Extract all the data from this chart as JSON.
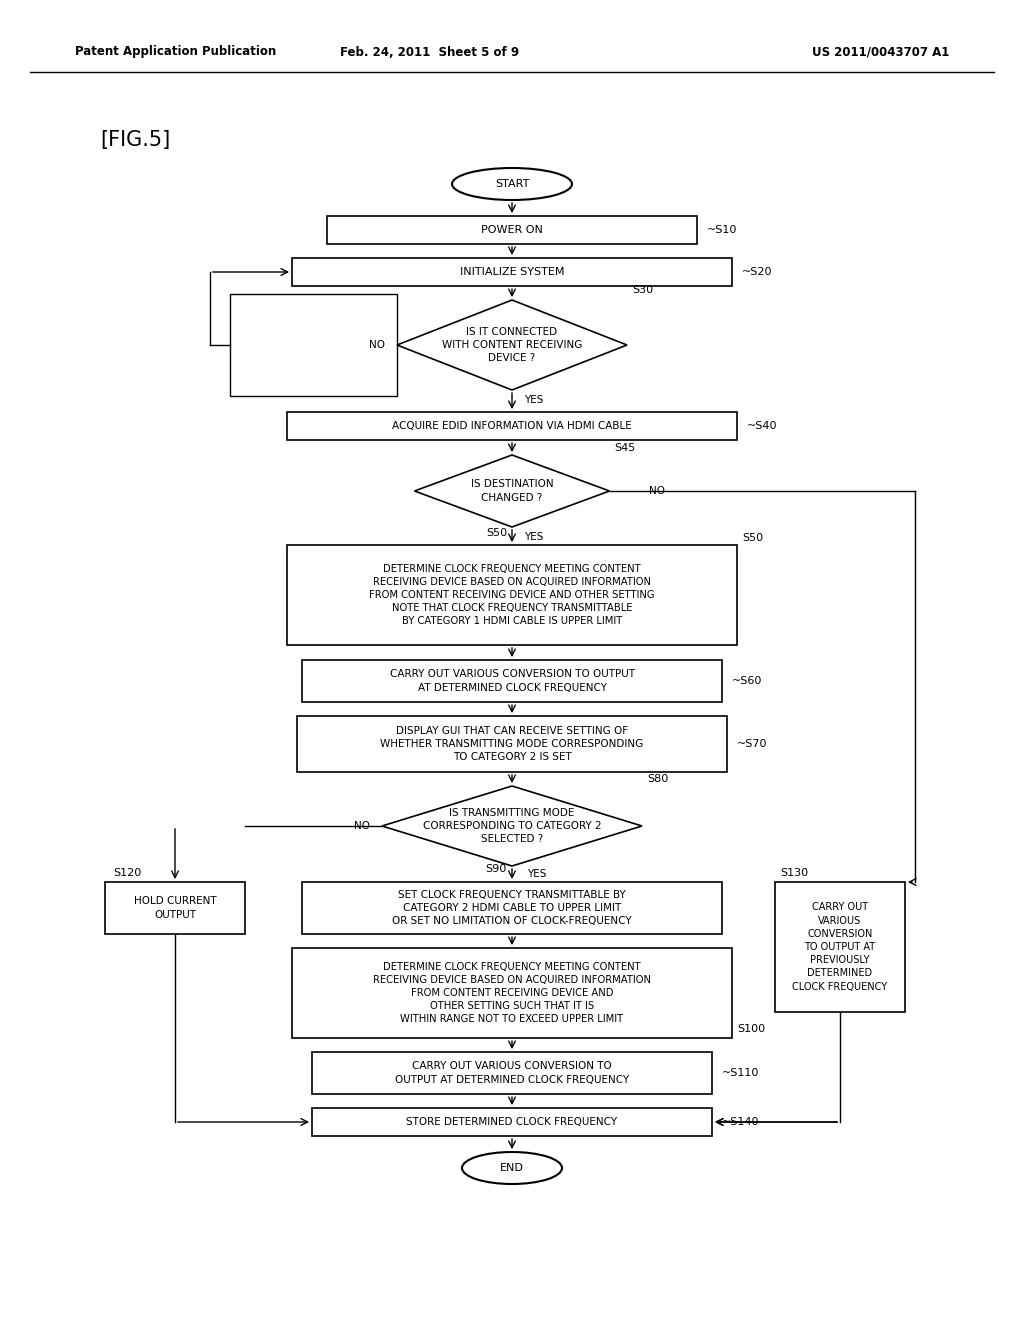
{
  "header_left": "Patent Application Publication",
  "header_center": "Feb. 24, 2011  Sheet 5 of 9",
  "header_right": "US 2011/0043707 A1",
  "fig_label": "[FIG.5]",
  "bg_color": "#ffffff",
  "nodes": {
    "start": {
      "text": "START"
    },
    "s10": {
      "text": "POWER ON",
      "label": "~S10"
    },
    "s20": {
      "text": "INITIALIZE SYSTEM",
      "label": "~S20"
    },
    "s30": {
      "text": "IS IT CONNECTED\nWITH CONTENT RECEIVING\nDEVICE ?",
      "label": "S30"
    },
    "s40": {
      "text": "ACQUIRE EDID INFORMATION VIA HDMI CABLE",
      "label": "~S40"
    },
    "s45": {
      "text": "IS DESTINATION\nCHANGED ?",
      "label": "S45"
    },
    "s50": {
      "text": "DETERMINE CLOCK FREQUENCY MEETING CONTENT\nRECEIVING DEVICE BASED ON ACQUIRED INFORMATION\nFROM CONTENT RECEIVING DEVICE AND OTHER SETTING\nNOTE THAT CLOCK FREQUENCY TRANSMITTABLE\nBY CATEGORY 1 HDMI CABLE IS UPPER LIMIT",
      "label": "S50"
    },
    "s60": {
      "text": "CARRY OUT VARIOUS CONVERSION TO OUTPUT\nAT DETERMINED CLOCK FREQUENCY",
      "label": "~S60"
    },
    "s70": {
      "text": "DISPLAY GUI THAT CAN RECEIVE SETTING OF\nWHETHER TRANSMITTING MODE CORRESPONDING\nTO CATEGORY 2 IS SET",
      "label": "~S70"
    },
    "s80": {
      "text": "IS TRANSMITTING MODE\nCORRESPONDING TO CATEGORY 2\nSELECTED ?",
      "label": "S80"
    },
    "s90": {
      "text": "SET CLOCK FREQUENCY TRANSMITTABLE BY\nCATEGORY 2 HDMI CABLE TO UPPER LIMIT\nOR SET NO LIMITATION OF CLOCK-FREQUENCY",
      "label": "S90"
    },
    "s100": {
      "text": "DETERMINE CLOCK FREQUENCY MEETING CONTENT\nRECEIVING DEVICE BASED ON ACQUIRED INFORMATION\nFROM CONTENT RECEIVING DEVICE AND\nOTHER SETTING SUCH THAT IT IS\nWITHIN RANGE NOT TO EXCEED UPPER LIMIT",
      "label": "S100"
    },
    "s110": {
      "text": "CARRY OUT VARIOUS CONVERSION TO\nOUTPUT AT DETERMINED CLOCK FREQUENCY",
      "label": "~S110"
    },
    "s120": {
      "text": "HOLD CURRENT\nOUTPUT",
      "label": "S120"
    },
    "s130": {
      "text": "CARRY OUT\nVARIOUS\nCONVERSION\nTO OUTPUT AT\nPREVIOUSLY\nDETERMINED\nCLOCK FREQUENCY",
      "label": "S130"
    },
    "s140": {
      "text": "STORE DETERMINED CLOCK FREQUENCY",
      "label": "~S140"
    },
    "end": {
      "text": "END"
    }
  }
}
